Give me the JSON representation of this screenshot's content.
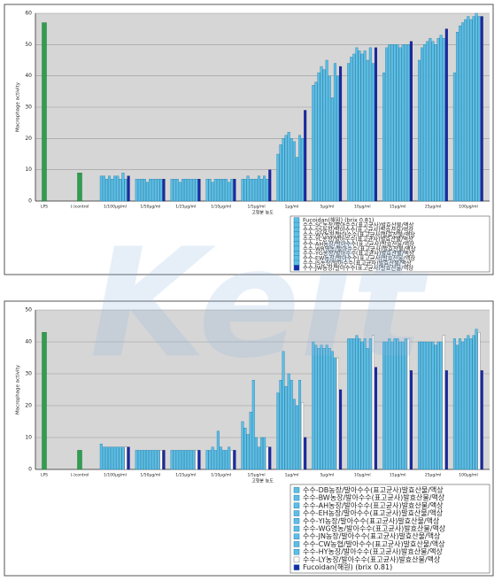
{
  "watermark": "Keit",
  "chart_data": [
    {
      "type": "bar",
      "y_label": "Macrophage activity",
      "x_label": "고형분 농도",
      "control_categories": [
        "LPS",
        "(-)control"
      ],
      "control_values": [
        57,
        9
      ],
      "control_color": "#2f9e4f",
      "categories": [
        "1/100μg/ml",
        "1/50μg/ml",
        "1/25μg/ml",
        "1/10μg/ml",
        "1/5μg/ml",
        "1μg/ml",
        "5μg/ml",
        "10μg/ml",
        "15μg/ml",
        "25μg/ml",
        "100μg/ml"
      ],
      "ylim": [
        0,
        60
      ],
      "yticks": [
        0,
        10,
        20,
        30,
        40,
        50,
        60
      ],
      "grid": true,
      "series": [
        {
          "name": "Fucoidan(해원) (brix 0.81)",
          "color": "#5bbfe6",
          "values": [
            8,
            7,
            7,
            7,
            7,
            15,
            37,
            44,
            41,
            45,
            41
          ]
        },
        {
          "name": "수수-SC농장/발아수수(표고균사)발효산물/액상",
          "color": "#5bbfe6",
          "values": [
            8,
            7,
            7,
            7,
            7,
            18,
            38,
            46,
            49,
            49,
            54
          ]
        },
        {
          "name": "수수-SS농장/발아수수(표고균사)발효산물/액상",
          "color": "#5bbfe6",
          "values": [
            7,
            7,
            7,
            6,
            8,
            20,
            41,
            47,
            50,
            50,
            56
          ]
        },
        {
          "name": "수수-WY농장/발아수수(표고균사)발효산물/액상",
          "color": "#5bbfe6",
          "values": [
            8,
            7,
            6,
            7,
            7,
            21,
            43,
            49,
            50,
            51,
            57
          ]
        },
        {
          "name": "수수-YC농장/발아수수(표고균사)발효산물/액상",
          "color": "#5bbfe6",
          "values": [
            7,
            6,
            7,
            7,
            7,
            22,
            42,
            48,
            50,
            52,
            58
          ]
        },
        {
          "name": "수수-AH농장/발아수수(표고균사)발효산물/액상",
          "color": "#5bbfe6",
          "values": [
            8,
            7,
            7,
            7,
            7,
            20,
            45,
            47,
            50,
            51,
            59
          ]
        },
        {
          "name": "수수-WR영농/발아수수(표고균사)발효산물/액상",
          "color": "#5bbfe6",
          "values": [
            8,
            7,
            7,
            7,
            8,
            19,
            40,
            48,
            49,
            50,
            58
          ]
        },
        {
          "name": "수수-YG농장/발아수수(표고균사)발효산물/액상",
          "color": "#5bbfe6",
          "values": [
            7,
            7,
            7,
            7,
            7,
            14,
            33,
            45,
            50,
            52,
            59
          ]
        },
        {
          "name": "수수-EW농장/발아수수(표고균사)발효산물/액상",
          "color": "#5bbfe6",
          "values": [
            9,
            7,
            7,
            6,
            8,
            21,
            44,
            49,
            50,
            53,
            60
          ]
        },
        {
          "name": "수수-JS농장/발아수수(표고균사)발효산물/액상",
          "color": "#5bbfe6",
          "values": [
            7,
            7,
            7,
            7,
            7,
            20,
            40,
            44,
            50,
            52,
            59
          ]
        },
        {
          "name": "수수-JW농장/발아수수(표고균사)발효산물/액상",
          "color": "#1a2aa8",
          "values": [
            8,
            7,
            7,
            7,
            10,
            29,
            43,
            49,
            51,
            55,
            59
          ]
        }
      ]
    },
    {
      "type": "bar",
      "y_label": "Macrophage activity",
      "x_label": "고형분 농도",
      "control_categories": [
        "LPS",
        "(-)control"
      ],
      "control_values": [
        43,
        6
      ],
      "control_color": "#2f9e4f",
      "categories": [
        "1/100μg/ml",
        "1/50μg/ml",
        "1/25μg/ml",
        "1/10μg/ml",
        "1/5μg/ml",
        "1μg/ml",
        "5μg/ml",
        "10μg/ml",
        "15μg/ml",
        "25μg/ml",
        "100μg/ml"
      ],
      "ylim": [
        0,
        50
      ],
      "yticks": [
        0,
        10,
        20,
        30,
        40,
        50
      ],
      "grid": true,
      "series": [
        {
          "name": "수수-DB농장/발아수수(표고균사)발효산물/액상",
          "color": "#5bbfe6",
          "values": [
            8,
            6,
            6,
            6,
            15,
            24,
            40,
            41,
            40,
            40,
            41
          ]
        },
        {
          "name": "수수-BW농장/발아수수(표고균사)발효산물/액상",
          "color": "#5bbfe6",
          "values": [
            7,
            6,
            6,
            6,
            13,
            28,
            39,
            41,
            40,
            40,
            39
          ]
        },
        {
          "name": "수수-AH농장/발아수수(표고균사)발효산물/액상",
          "color": "#5bbfe6",
          "values": [
            7,
            6,
            6,
            7,
            11,
            37,
            38,
            41,
            41,
            40,
            41
          ]
        },
        {
          "name": "수수-EH농장/발아수수(표고균사)발효산물/액상",
          "color": "#5bbfe6",
          "values": [
            7,
            6,
            6,
            6,
            18,
            26,
            39,
            42,
            40,
            40,
            40
          ]
        },
        {
          "name": "수수-YI농장/발아수수(표고균사)발효산물/액상",
          "color": "#5bbfe6",
          "values": [
            7,
            6,
            6,
            12,
            28,
            30,
            38,
            41,
            41,
            40,
            41
          ]
        },
        {
          "name": "수수-WG영농/발아수수(표고균사)발효산물/액상",
          "color": "#5bbfe6",
          "values": [
            7,
            6,
            6,
            7,
            10,
            28,
            39,
            40,
            41,
            40,
            42
          ]
        },
        {
          "name": "수수-JN농장/발아수수(표고균사)발효산물/액상",
          "color": "#5bbfe6",
          "values": [
            7,
            6,
            6,
            6,
            7,
            22,
            38,
            41,
            40,
            39,
            41
          ]
        },
        {
          "name": "수수-CW농협/발아수수(표고균사)발효산물/액상",
          "color": "#5bbfe6",
          "values": [
            7,
            6,
            6,
            6,
            10,
            20,
            37,
            38,
            40,
            40,
            42
          ]
        },
        {
          "name": "수수-HY농장/발아수수(표고균사)발효산물/액상",
          "color": "#5bbfe6",
          "values": [
            7,
            6,
            6,
            7,
            10,
            28,
            35,
            41,
            41,
            40,
            44
          ]
        },
        {
          "name": "수수-LY농장/발아수수(표고균사)발효산물/액상",
          "color": "#ffffff",
          "values": [
            7,
            6,
            6,
            6,
            7,
            21,
            35,
            42,
            41,
            42,
            43
          ]
        },
        {
          "name": "Fucoidan(해원) (brix 0.81)",
          "color": "#1a2aa8",
          "values": [
            7,
            6,
            6,
            6,
            7,
            10,
            25,
            32,
            31,
            31,
            31
          ]
        }
      ]
    }
  ]
}
